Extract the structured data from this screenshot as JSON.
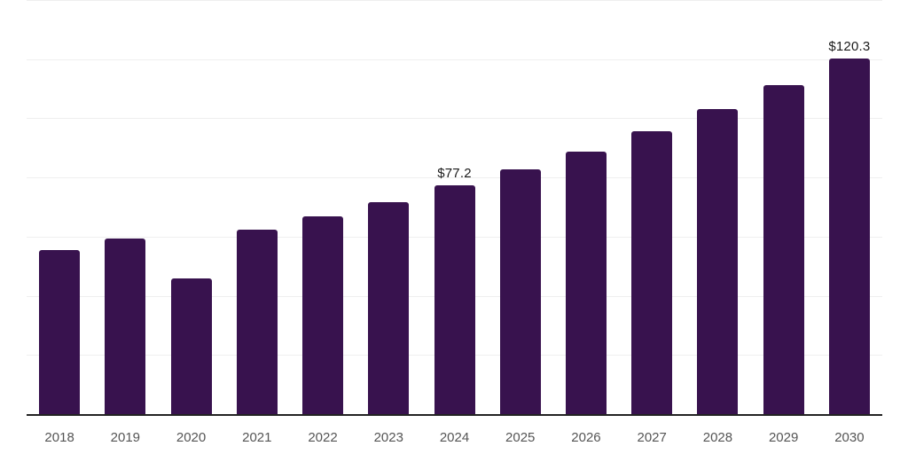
{
  "chart_data": {
    "type": "bar",
    "title": "",
    "xlabel": "",
    "ylabel": "",
    "categories": [
      "2018",
      "2019",
      "2020",
      "2021",
      "2022",
      "2023",
      "2024",
      "2025",
      "2026",
      "2027",
      "2028",
      "2029",
      "2030"
    ],
    "values": [
      55.5,
      59.3,
      46.0,
      62.5,
      67.0,
      71.8,
      77.2,
      82.6,
      88.8,
      95.5,
      103.1,
      111.3,
      120.3
    ],
    "point_labels": [
      "",
      "",
      "",
      "",
      "",
      "",
      "$77.2",
      "",
      "",
      "",
      "",
      "",
      "$120.3"
    ],
    "value_prefix": "$",
    "ylim": [
      0,
      140
    ],
    "grid_step": 20,
    "grid": "horizontal-only",
    "legend_position": "none",
    "colors": {
      "bar": "#38124e",
      "gridline": "#efefef",
      "axis_line": "#222222",
      "tick_label": "#555555",
      "value_label": "#1a1a1a",
      "background": "#ffffff"
    }
  }
}
